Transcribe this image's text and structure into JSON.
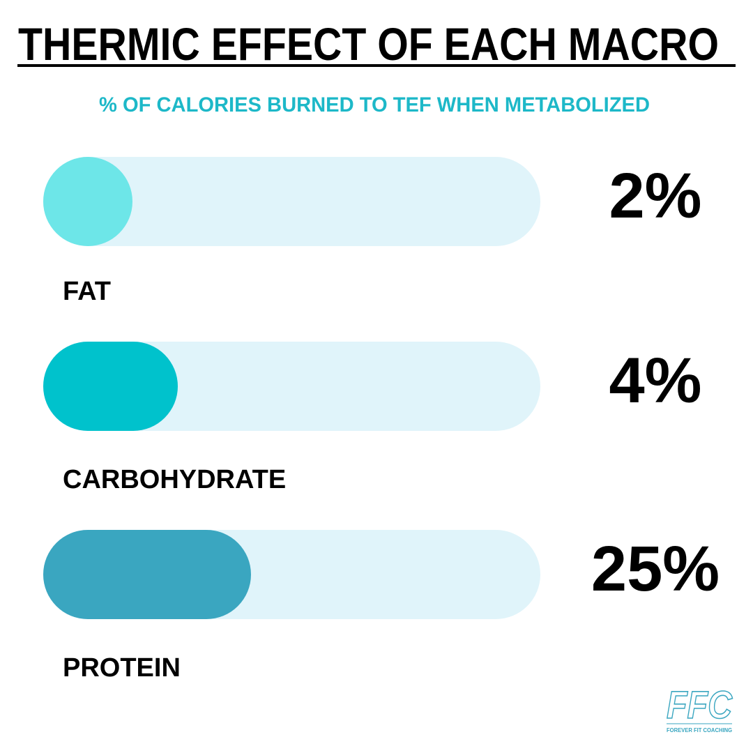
{
  "header": {
    "title": "THERMIC EFFECT OF EACH MACRO",
    "subtitle": "% OF CALORIES BURNED TO TEF WHEN METABOLIZED"
  },
  "items": [
    {
      "label": "FAT",
      "value": "2%"
    },
    {
      "label": "CARBOHYDRATE",
      "value": "4%"
    },
    {
      "label": "PROTEIN",
      "value": "25%"
    }
  ],
  "logo": {
    "mark": "FFC",
    "text": "FOREVER FIT COACHING"
  }
}
